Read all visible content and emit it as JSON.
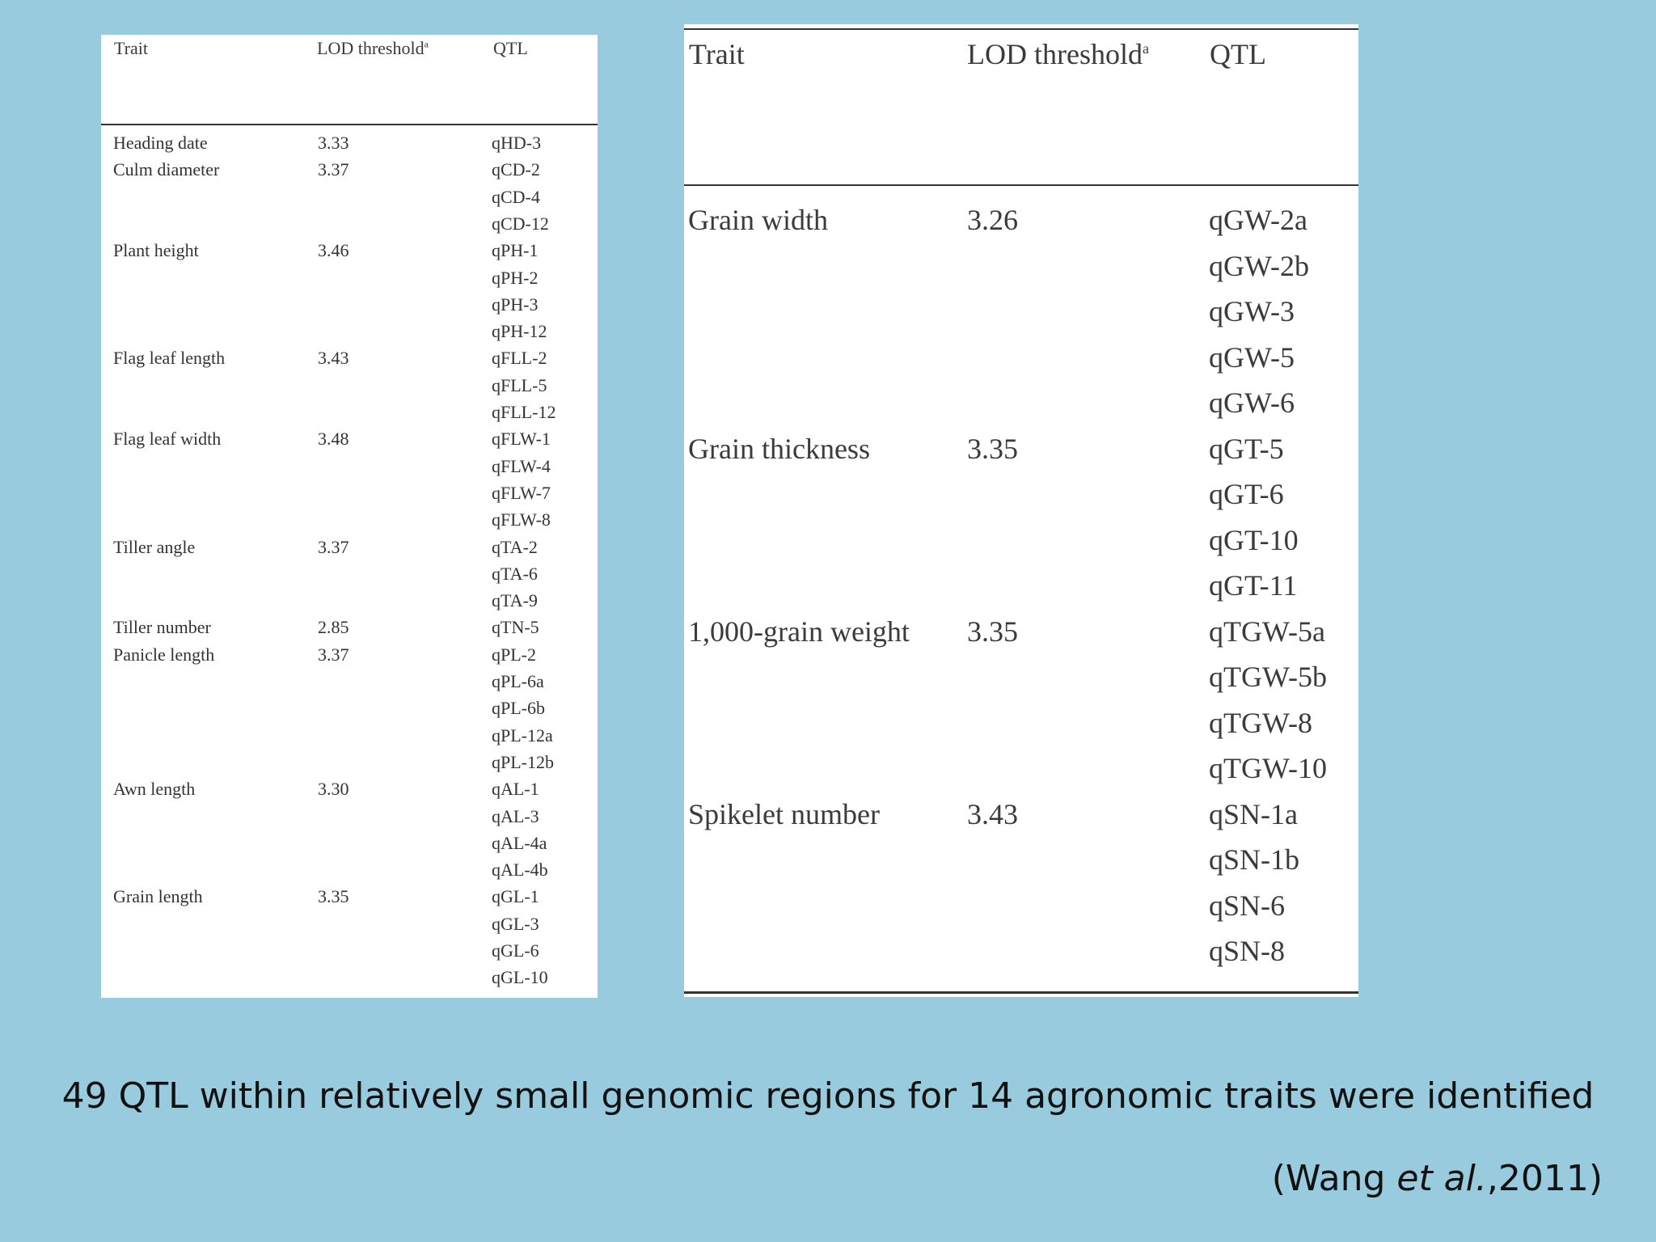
{
  "left_table": {
    "headers": {
      "trait": "Trait",
      "lod": "LOD threshold",
      "lod_note": "a",
      "qtl": "QTL"
    },
    "rows": [
      {
        "trait": "Heading date",
        "lod": "3.33",
        "qtl": [
          "qHD-3"
        ]
      },
      {
        "trait": "Culm diameter",
        "lod": "3.37",
        "qtl": [
          "qCD-2",
          "qCD-4",
          "qCD-12"
        ]
      },
      {
        "trait": "Plant height",
        "lod": "3.46",
        "qtl": [
          "qPH-1",
          "qPH-2",
          "qPH-3",
          "qPH-12"
        ]
      },
      {
        "trait": "Flag leaf length",
        "lod": "3.43",
        "qtl": [
          "qFLL-2",
          "qFLL-5",
          "qFLL-12"
        ]
      },
      {
        "trait": "Flag leaf width",
        "lod": "3.48",
        "qtl": [
          "qFLW-1",
          "qFLW-4",
          "qFLW-7",
          "qFLW-8"
        ]
      },
      {
        "trait": "Tiller angle",
        "lod": "3.37",
        "qtl": [
          "qTA-2",
          "qTA-6",
          "qTA-9"
        ]
      },
      {
        "trait": "Tiller number",
        "lod": "2.85",
        "qtl": [
          "qTN-5"
        ]
      },
      {
        "trait": "Panicle length",
        "lod": "3.37",
        "qtl": [
          "qPL-2",
          "qPL-6a",
          "qPL-6b",
          "qPL-12a",
          "qPL-12b"
        ]
      },
      {
        "trait": "Awn length",
        "lod": "3.30",
        "qtl": [
          "qAL-1",
          "qAL-3",
          "qAL-4a",
          "qAL-4b"
        ]
      },
      {
        "trait": "Grain length",
        "lod": "3.35",
        "qtl": [
          "qGL-1",
          "qGL-3",
          "qGL-6",
          "qGL-10"
        ]
      }
    ]
  },
  "right_table": {
    "headers": {
      "trait": "Trait",
      "lod": "LOD threshold",
      "lod_note": "a",
      "qtl": "QTL"
    },
    "rows": [
      {
        "trait": "Grain width",
        "lod": "3.26",
        "qtl": [
          "qGW-2a",
          "qGW-2b",
          "qGW-3",
          "qGW-5",
          "qGW-6"
        ]
      },
      {
        "trait": "Grain thickness",
        "lod": "3.35",
        "qtl": [
          "qGT-5",
          "qGT-6",
          "qGT-10",
          "qGT-11"
        ]
      },
      {
        "trait": "1,000-grain weight",
        "lod": "3.35",
        "qtl": [
          "qTGW-5a",
          "qTGW-5b",
          "qTGW-8",
          "qTGW-10"
        ]
      },
      {
        "trait": "Spikelet number",
        "lod": "3.43",
        "qtl": [
          "qSN-1a",
          "qSN-1b",
          "qSN-6",
          "qSN-8"
        ]
      }
    ]
  },
  "caption": "49 QTL within relatively small genomic regions for 14 agronomic traits were identified",
  "citation": {
    "prefix": "(Wang ",
    "italic": "et al.",
    "suffix": ",2011)"
  }
}
